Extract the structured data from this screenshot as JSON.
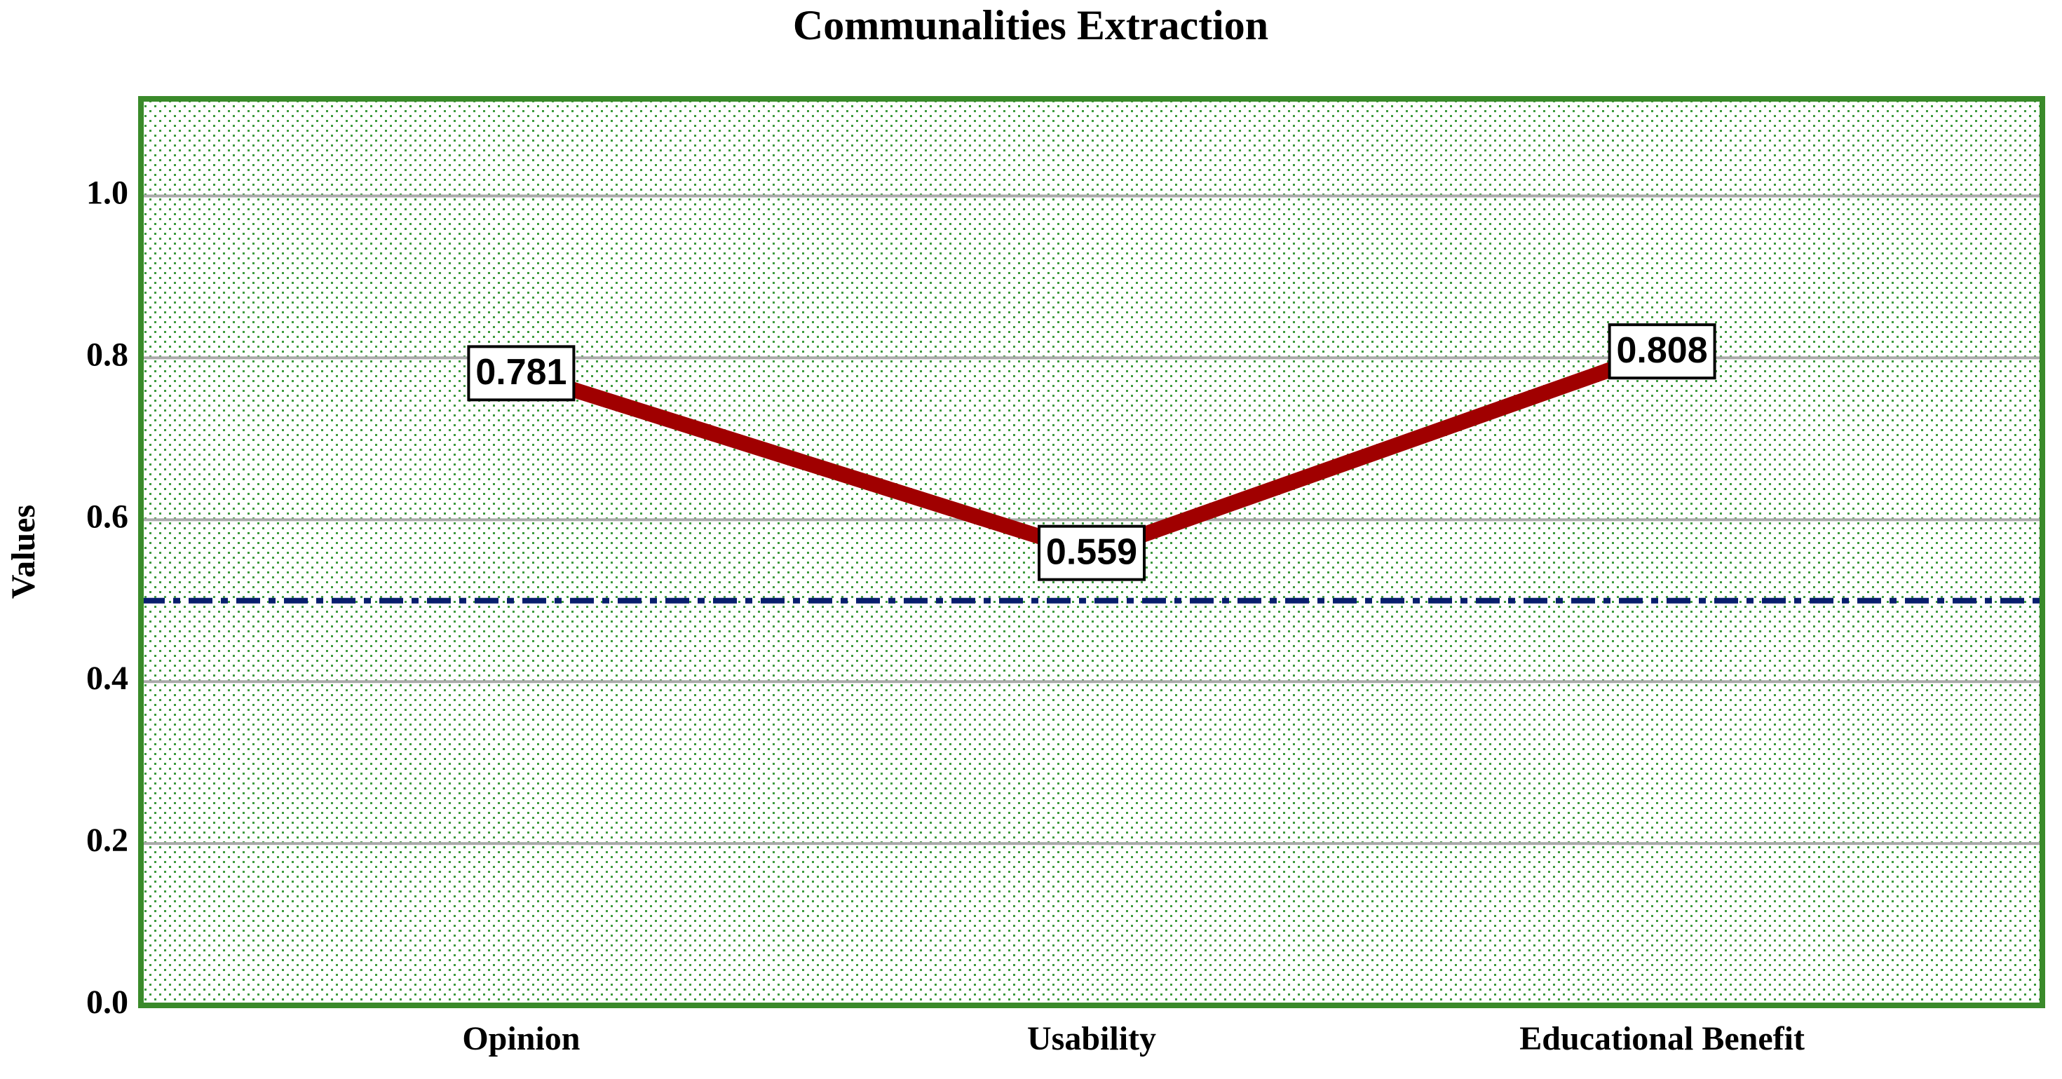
{
  "chart_data": {
    "type": "line",
    "title": "Communalities Extraction",
    "y_label": "Values",
    "categories": [
      "Opinion",
      "Usability",
      "Educational Benefit"
    ],
    "series": [
      {
        "name": "Extraction",
        "color": "#a00000",
        "values": [
          0.781,
          0.559,
          0.808
        ]
      }
    ],
    "ylim": [
      0,
      1.12
    ],
    "yticks": [
      {
        "value": 0,
        "label": "0.0"
      },
      {
        "value": 0.2,
        "label": "0.2"
      },
      {
        "value": 0.4,
        "label": "0.4"
      },
      {
        "value": 0.6,
        "label": "0.6"
      },
      {
        "value": 0.8,
        "label": "0.8"
      },
      {
        "value": 1,
        "label": "1.0"
      }
    ],
    "reference_line": {
      "value": 0.5,
      "color": "#0a1f6e"
    },
    "grid": true,
    "legend": false
  }
}
